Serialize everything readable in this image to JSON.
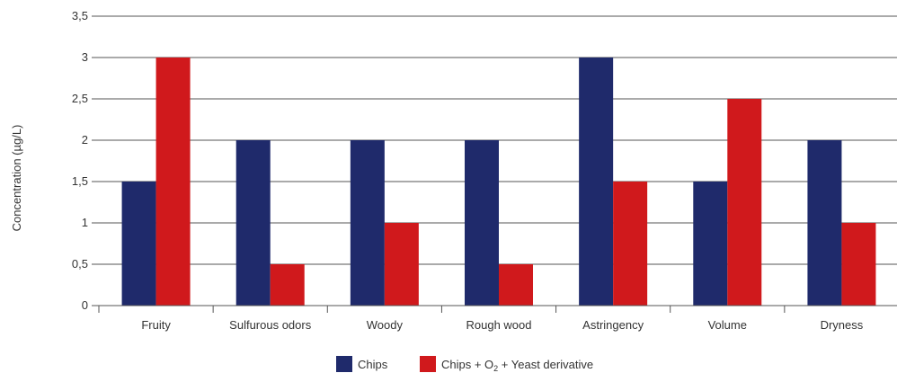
{
  "chart_data": {
    "type": "bar",
    "title": "",
    "xlabel": "",
    "ylabel": "Concentration (µg/L)",
    "ylim": [
      0,
      3.5
    ],
    "yticks": [
      "0",
      "0,5",
      "1",
      "1,5",
      "2",
      "2,5",
      "3",
      "3,5"
    ],
    "ytick_values": [
      0,
      0.5,
      1,
      1.5,
      2,
      2.5,
      3,
      3.5
    ],
    "grid": true,
    "legend_position": "bottom",
    "categories": [
      "Fruity",
      "Sulfurous odors",
      "Woody",
      "Rough wood",
      "Astringency",
      "Volume",
      "Dryness"
    ],
    "series": [
      {
        "name": "Chips",
        "color": "#1f2a6b",
        "values": [
          1.5,
          2,
          2,
          2,
          3,
          1.5,
          2
        ]
      },
      {
        "name": "Chips + O2 + Yeast derivative",
        "color": "#d0191c",
        "values": [
          3,
          0.5,
          1,
          0.5,
          1.5,
          2.5,
          1
        ]
      }
    ],
    "legend": {
      "chips_label": "Chips",
      "mix_label_prefix": "Chips + O",
      "mix_label_sub": "2",
      "mix_label_suffix": " + Yeast derivative"
    }
  }
}
